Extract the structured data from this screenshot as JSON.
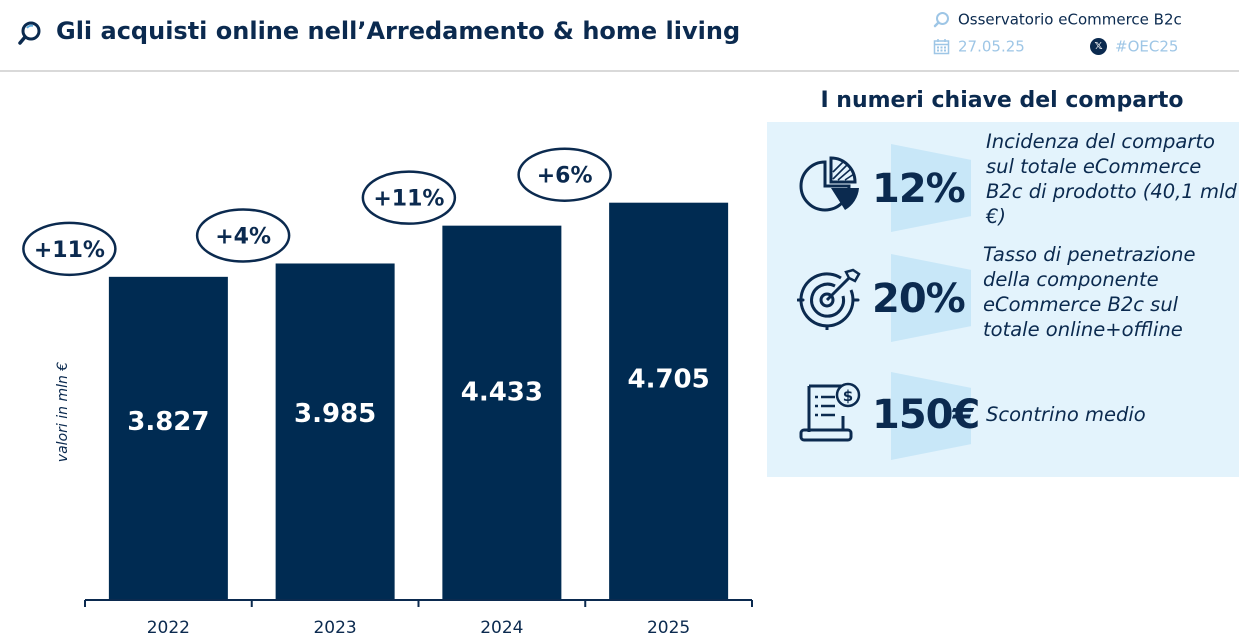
{
  "header": {
    "title": "Gli acquisti online nell’Arredamento & home living",
    "observatory": "Osservatorio eCommerce B2c",
    "date": "27.05.25",
    "hashtag": "#OEC25",
    "x_icon_letter": "𝕏"
  },
  "chart_data": {
    "type": "bar",
    "categories": [
      "2022",
      "2023",
      "2024",
      "2025"
    ],
    "values": [
      3827,
      3985,
      4433,
      4705
    ],
    "value_labels": [
      "3.827",
      "3.985",
      "4.433",
      "4.705"
    ],
    "growth_labels": [
      "+11%",
      "+4%",
      "+11%",
      "+6%"
    ],
    "title": "",
    "xlabel": "",
    "ylabel": "valori in mln €",
    "ylim": [
      0,
      5400
    ],
    "grid": false,
    "legend": "none",
    "bar_color": "#002b52"
  },
  "panel": {
    "title": "I numeri chiave del comparto",
    "kpis": [
      {
        "value": "12%",
        "icon": "pie-chart-icon",
        "description": "Incidenza del comparto sul totale eCommerce B2c di prodotto (40,1 mld €)"
      },
      {
        "value": "20%",
        "icon": "target-icon",
        "description": "Tasso di penetrazione della componente eCommerce B2c sul totale online+offline"
      },
      {
        "value": "150€",
        "icon": "receipt-icon",
        "description": "Scontrino medio"
      }
    ]
  },
  "colors": {
    "primary": "#0b2a4f",
    "bar": "#002b52",
    "panel_bg": "#e3f3fc",
    "wedge": "#c8e7f8",
    "muted": "#9ec6e6"
  }
}
